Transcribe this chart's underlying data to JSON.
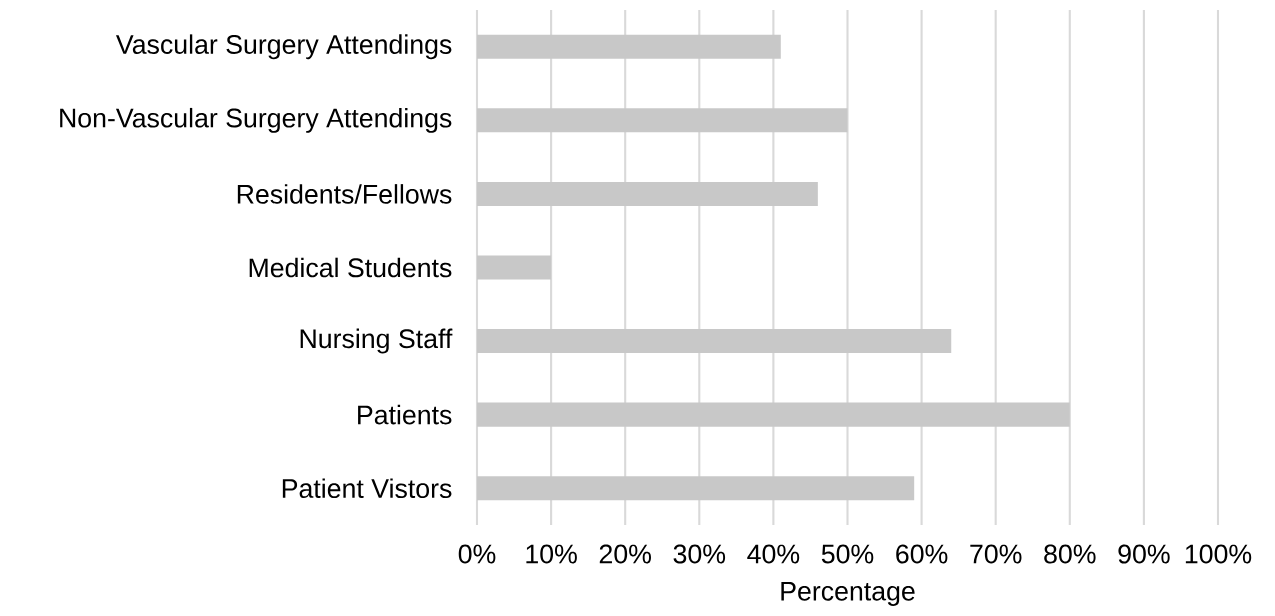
{
  "chart_data": {
    "type": "bar",
    "orientation": "horizontal",
    "xlabel": "Percentage",
    "categories": [
      "Vascular Surgery Attendings",
      "Non-Vascular Surgery Attendings",
      "Residents/Fellows",
      "Medical Students",
      "Nursing Staff",
      "Patients",
      "Patient Vistors"
    ],
    "values": [
      41,
      50,
      46,
      10,
      64,
      80,
      59
    ],
    "color": "#c8c8c8",
    "xlim": [
      0,
      100
    ],
    "xticks": [
      {
        "value": 0,
        "label": "0%"
      },
      {
        "value": 10,
        "label": "10%"
      },
      {
        "value": 20,
        "label": "20%"
      },
      {
        "value": 30,
        "label": "30%"
      },
      {
        "value": 40,
        "label": "40%"
      },
      {
        "value": 50,
        "label": "50%"
      },
      {
        "value": 60,
        "label": "60%"
      },
      {
        "value": 70,
        "label": "70%"
      },
      {
        "value": 80,
        "label": "80%"
      },
      {
        "value": 90,
        "label": "90%"
      },
      {
        "value": 100,
        "label": "100%"
      }
    ],
    "grid": "x"
  }
}
